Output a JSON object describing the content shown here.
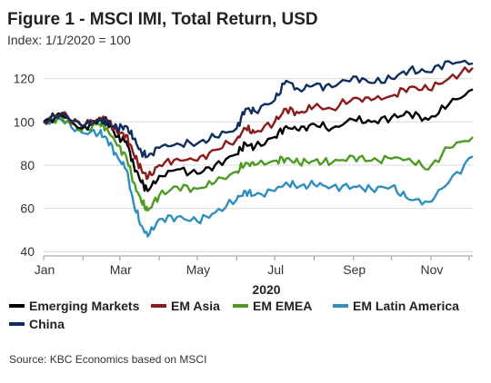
{
  "chart_data": {
    "type": "line",
    "title": "Figure 1 - MSCI IMI, Total Return, USD",
    "subtitle": "Index: 1/1/2020 = 100",
    "xlabel": "2020",
    "ylabel": "",
    "source": "Source: KBC Economics based on MSCI",
    "x_ticks": [
      "Jan",
      "Mar",
      "May",
      "Jul",
      "Sep",
      "Nov"
    ],
    "y_ticks": [
      40,
      60,
      80,
      100,
      120
    ],
    "xlim": [
      "2020-01-01",
      "2020-12-04"
    ],
    "ylim": [
      38,
      132
    ],
    "grid": "horizontal",
    "legend_position": "bottom",
    "dates": [
      "2020-01-01",
      "2020-01-15",
      "2020-01-31",
      "2020-02-14",
      "2020-02-20",
      "2020-02-28",
      "2020-03-06",
      "2020-03-12",
      "2020-03-18",
      "2020-03-23",
      "2020-04-01",
      "2020-04-15",
      "2020-05-01",
      "2020-05-15",
      "2020-06-01",
      "2020-06-08",
      "2020-06-15",
      "2020-07-01",
      "2020-07-10",
      "2020-07-20",
      "2020-08-01",
      "2020-08-15",
      "2020-09-01",
      "2020-09-15",
      "2020-10-01",
      "2020-10-15",
      "2020-10-30",
      "2020-11-15",
      "2020-12-04"
    ],
    "series": [
      {
        "name": "Emerging Markets",
        "color": "#000000",
        "values": [
          100,
          103,
          97,
          101,
          100,
          93,
          91,
          80,
          72,
          68,
          75,
          78,
          76,
          80,
          85,
          90,
          88,
          93,
          98,
          96,
          99,
          97,
          101,
          100,
          102,
          104,
          101,
          108,
          115
        ]
      },
      {
        "name": "EM Asia",
        "color": "#8b1a1a",
        "values": [
          100,
          104,
          98,
          102,
          101,
          95,
          94,
          85,
          78,
          74,
          80,
          83,
          82,
          87,
          92,
          97,
          95,
          100,
          106,
          104,
          107,
          106,
          111,
          110,
          112,
          116,
          115,
          120,
          125
        ]
      },
      {
        "name": "EM EMEA",
        "color": "#4e9a22",
        "values": [
          100,
          102,
          96,
          99,
          97,
          89,
          84,
          72,
          63,
          59,
          66,
          70,
          69,
          72,
          77,
          81,
          80,
          82,
          83,
          81,
          82,
          81,
          84,
          82,
          83,
          83,
          78,
          88,
          93
        ]
      },
      {
        "name": "EM Latin America",
        "color": "#2e8fbf",
        "values": [
          100,
          101,
          95,
          95,
          92,
          84,
          78,
          62,
          52,
          47,
          55,
          56,
          54,
          58,
          64,
          68,
          66,
          68,
          72,
          70,
          71,
          70,
          70,
          69,
          70,
          64,
          63,
          72,
          84
        ]
      },
      {
        "name": "China",
        "color": "#0e2f5e",
        "values": [
          100,
          104,
          98,
          101,
          100,
          97,
          98,
          92,
          86,
          84,
          88,
          90,
          90,
          93,
          97,
          106,
          105,
          110,
          119,
          115,
          117,
          116,
          121,
          118,
          120,
          124,
          123,
          128,
          127
        ]
      }
    ]
  }
}
